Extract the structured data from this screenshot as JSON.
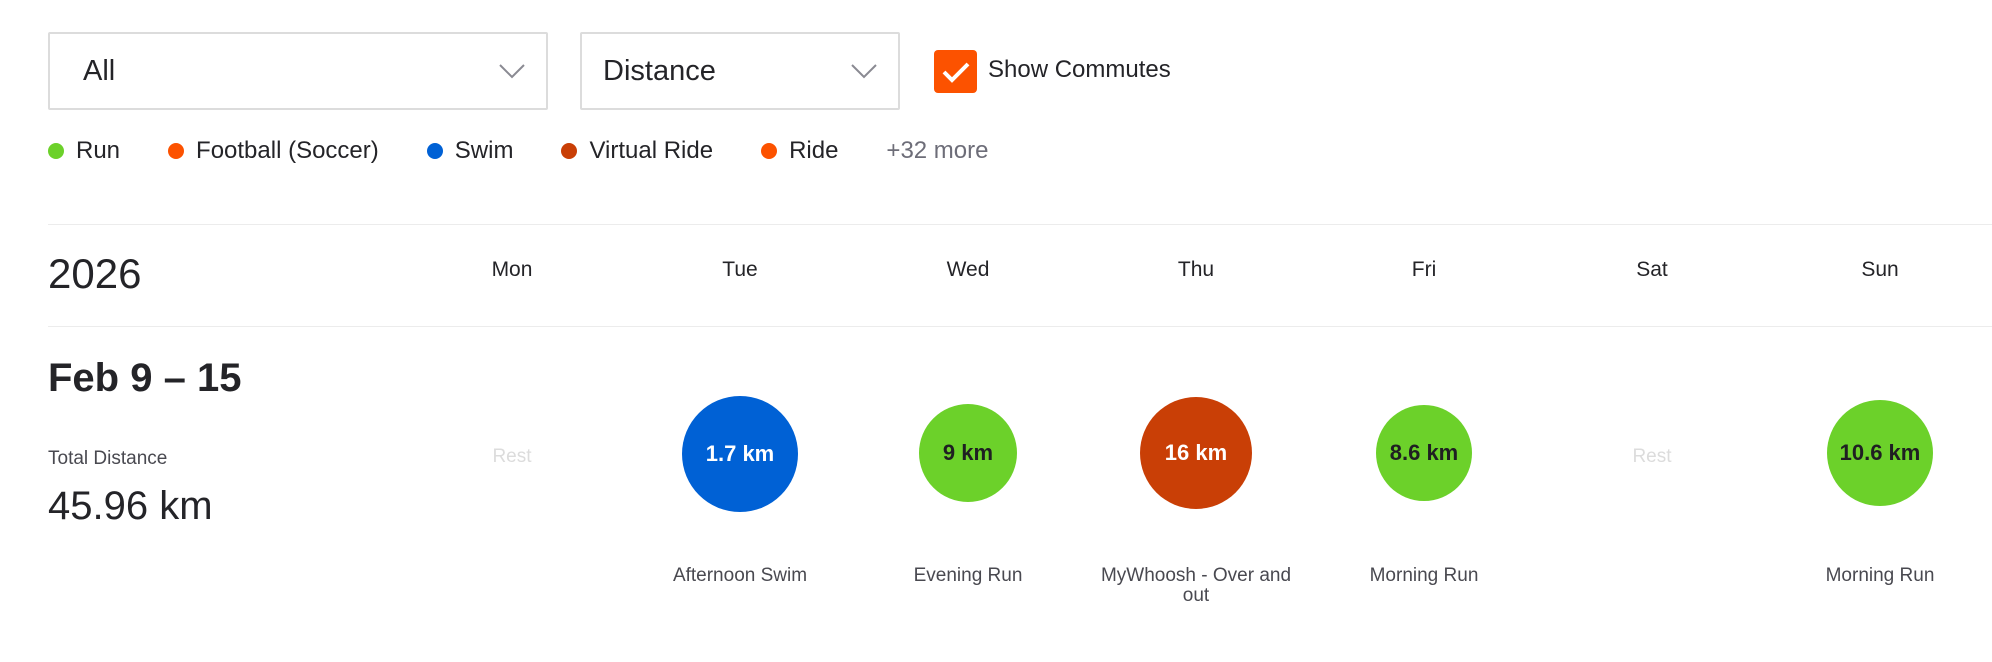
{
  "filters": {
    "sport_select": {
      "value": "All",
      "icon": "chevron-down-icon"
    },
    "metric_select": {
      "value": "Distance",
      "icon": "chevron-down-icon"
    },
    "show_commutes": {
      "label": "Show Commutes",
      "checked": true,
      "color": "#fc5200"
    }
  },
  "legend": {
    "items": [
      {
        "label": "Run",
        "color": "#6cd12a"
      },
      {
        "label": "Football (Soccer)",
        "color": "#fc5200"
      },
      {
        "label": "Swim",
        "color": "#0061d5"
      },
      {
        "label": "Virtual Ride",
        "color": "#c93f06"
      },
      {
        "label": "Ride",
        "color": "#fc5200"
      }
    ],
    "more_label": "+32 more"
  },
  "calendar": {
    "year": "2026",
    "days": [
      "Mon",
      "Tue",
      "Wed",
      "Thu",
      "Fri",
      "Sat",
      "Sun"
    ],
    "week": {
      "range": "Feb 9 – 15",
      "total_label": "Total Distance",
      "total_value": "45.96 km",
      "rest_label": "Rest",
      "activities": [
        {
          "day": "Tue",
          "distance": "1.7 km",
          "name": "Afternoon Swim",
          "sport": "Swim",
          "color": "#0061d5",
          "text_color": "#ffffff"
        },
        {
          "day": "Wed",
          "distance": "9 km",
          "name": "Evening Run",
          "sport": "Run",
          "color": "#6cd12a",
          "text_color": "#1f1f22"
        },
        {
          "day": "Thu",
          "distance": "16 km",
          "name": "MyWhoosh - Over and out",
          "sport": "Virtual Ride",
          "color": "#c93f06",
          "text_color": "#ffffff"
        },
        {
          "day": "Fri",
          "distance": "8.6 km",
          "name": "Morning Run",
          "sport": "Run",
          "color": "#6cd12a",
          "text_color": "#1f1f22"
        },
        {
          "day": "Sun",
          "distance": "10.6 km",
          "name": "Morning Run",
          "sport": "Run",
          "color": "#6cd12a",
          "text_color": "#1f1f22"
        }
      ]
    }
  }
}
